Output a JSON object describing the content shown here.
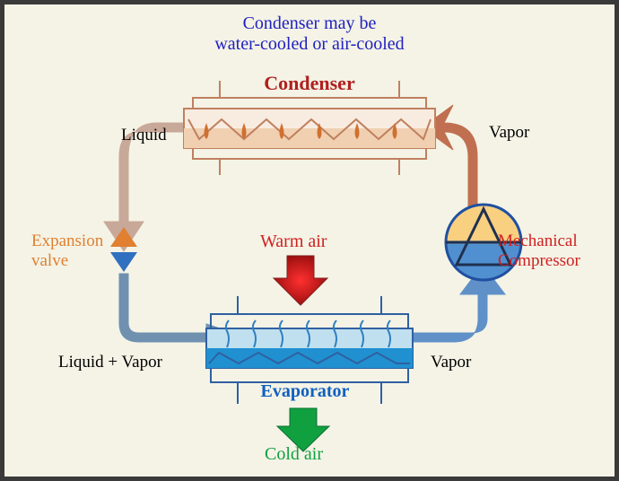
{
  "title_line1": "Condenser may be",
  "title_line2": "water-cooled or air-cooled",
  "labels": {
    "condenser": "Condenser",
    "evaporator": "Evaporator",
    "liquid": "Liquid",
    "vapor_top": "Vapor",
    "vapor_bottom": "Vapor",
    "liquid_vapor": "Liquid + Vapor",
    "expansion_valve": "Expansion\nvalve",
    "mech_compressor": "Mechanical\nCompressor",
    "warm_air": "Warm air",
    "cold_air": "Cold air"
  },
  "colors": {
    "bg": "#f4f3e6",
    "border": "#3a3a3a",
    "title_color": "#2020c0",
    "condenser_red": "#b02020",
    "expansion_orange": "#e08030",
    "warm_red": "#d02020",
    "cold_green": "#10a040",
    "evaporator_blue": "#1060c0",
    "black": "#000000",
    "compressor_red": "#d02020",
    "pipe_warm": "#c8a898",
    "pipe_hot": "#c07050",
    "pipe_cold": "#6090c8",
    "pipe_mid": "#7090b0",
    "condenser_fill1": "#f8ece0",
    "condenser_fill2": "#f0d0b0",
    "condenser_stroke": "#c08060",
    "evap_stroke": "#3060a0",
    "evap_fill": "#c0e0f0",
    "evap_liquid": "#2090d0",
    "compressor_stroke": "#2050a0",
    "compressor_top": "#f8d080",
    "compressor_bot": "#5090d0",
    "compressor_dark": "#203050"
  },
  "fonts": {
    "title": 20,
    "component_header": 22,
    "label": 19,
    "airlabel": 20
  }
}
